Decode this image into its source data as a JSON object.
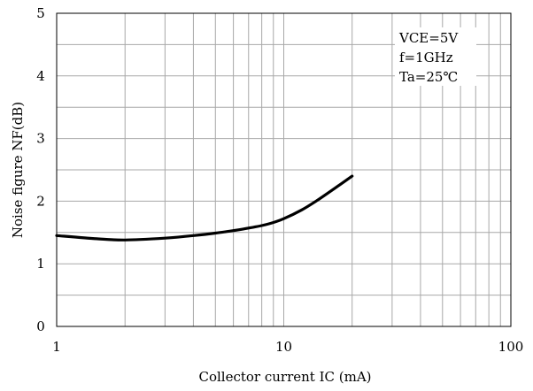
{
  "chart_data": {
    "type": "line",
    "xscale": "log",
    "xlim": [
      1,
      100
    ],
    "ylim": [
      0,
      5
    ],
    "grid": true,
    "xlabel": "Collector current  IC (mA)",
    "ylabel": "Noise figure  NF(dB)",
    "x_ticks": [
      "1",
      "10",
      "100"
    ],
    "y_ticks": [
      "0",
      "1",
      "2",
      "3",
      "4",
      "5"
    ],
    "conditions": [
      "VCE=5V",
      "f=1GHz",
      "Ta=25℃"
    ],
    "series": [
      {
        "x": [
          1,
          1.5,
          2,
          3,
          4,
          5,
          6,
          7,
          8,
          9,
          10,
          12,
          14,
          17,
          20
        ],
        "y": [
          1.45,
          1.4,
          1.38,
          1.41,
          1.45,
          1.49,
          1.53,
          1.57,
          1.61,
          1.66,
          1.72,
          1.86,
          2.01,
          2.22,
          2.4
        ]
      }
    ]
  }
}
